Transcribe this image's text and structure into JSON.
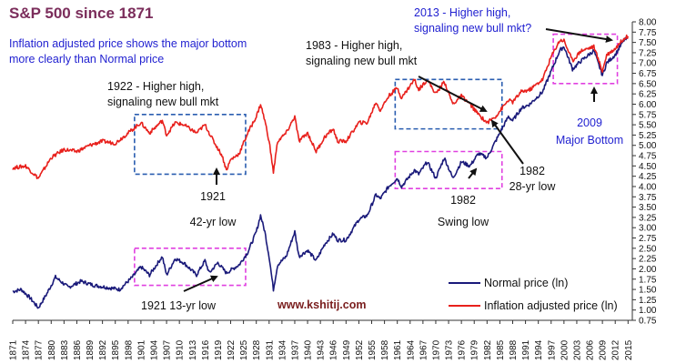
{
  "chart_data": {
    "type": "line",
    "title": "S&P 500 since 1871",
    "subtitle_lines": [
      "Inflation adjusted price shows the major bottom",
      "more clearly than Normal price"
    ],
    "xlabel": "",
    "ylabel": "",
    "xlim": [
      1871,
      2016
    ],
    "ylim": [
      0.75,
      8.0
    ],
    "grid": false,
    "legend_position": "bottom-right",
    "x_tick_labels": [
      "1871",
      "1874",
      "1877",
      "1880",
      "1883",
      "1886",
      "1889",
      "1892",
      "1895",
      "1898",
      "1901",
      "1904",
      "1907",
      "1910",
      "1913",
      "1916",
      "1919",
      "1922",
      "1925",
      "1928",
      "1931",
      "1934",
      "1937",
      "1940",
      "1943",
      "1946",
      "1949",
      "1952",
      "1955",
      "1958",
      "1961",
      "1964",
      "1967",
      "1970",
      "1973",
      "1976",
      "1979",
      "1982",
      "1985",
      "1988",
      "1991",
      "1994",
      "1997",
      "2000",
      "2003",
      "2006",
      "2009",
      "2012",
      "2015"
    ],
    "y_tick_labels": [
      "8.00",
      "7.75",
      "7.50",
      "7.25",
      "7.00",
      "6.75",
      "6.50",
      "6.25",
      "6.00",
      "5.75",
      "5.50",
      "5.25",
      "5.00",
      "4.75",
      "4.50",
      "4.25",
      "4.00",
      "3.75",
      "3.50",
      "3.25",
      "3.00",
      "2.75",
      "2.50",
      "2.25",
      "2.00",
      "1.75",
      "1.50",
      "1.25",
      "1.00",
      "0.75"
    ],
    "series": [
      {
        "name": "Normal price (ln)",
        "color": "#1a1a7a",
        "points": [
          [
            1871,
            1.45
          ],
          [
            1873,
            1.5
          ],
          [
            1875,
            1.3
          ],
          [
            1877,
            1.05
          ],
          [
            1879,
            1.4
          ],
          [
            1881,
            1.8
          ],
          [
            1884,
            1.55
          ],
          [
            1887,
            1.7
          ],
          [
            1890,
            1.6
          ],
          [
            1893,
            1.55
          ],
          [
            1896,
            1.5
          ],
          [
            1899,
            1.8
          ],
          [
            1901,
            2.05
          ],
          [
            1903,
            1.85
          ],
          [
            1906,
            2.3
          ],
          [
            1907,
            1.85
          ],
          [
            1909,
            2.25
          ],
          [
            1911,
            2.15
          ],
          [
            1914,
            1.85
          ],
          [
            1916,
            2.2
          ],
          [
            1917,
            1.9
          ],
          [
            1919,
            2.15
          ],
          [
            1921,
            1.9
          ],
          [
            1924,
            2.1
          ],
          [
            1926,
            2.4
          ],
          [
            1928,
            2.9
          ],
          [
            1929,
            3.3
          ],
          [
            1930,
            2.9
          ],
          [
            1931,
            2.3
          ],
          [
            1932,
            1.5
          ],
          [
            1933,
            2.1
          ],
          [
            1935,
            2.3
          ],
          [
            1937,
            2.9
          ],
          [
            1938,
            2.3
          ],
          [
            1940,
            2.45
          ],
          [
            1942,
            2.2
          ],
          [
            1944,
            2.6
          ],
          [
            1946,
            2.85
          ],
          [
            1947,
            2.7
          ],
          [
            1949,
            2.7
          ],
          [
            1952,
            3.2
          ],
          [
            1954,
            3.3
          ],
          [
            1956,
            3.8
          ],
          [
            1957,
            3.7
          ],
          [
            1959,
            4.0
          ],
          [
            1961,
            4.2
          ],
          [
            1962,
            4.0
          ],
          [
            1965,
            4.4
          ],
          [
            1966,
            4.3
          ],
          [
            1968,
            4.6
          ],
          [
            1970,
            4.2
          ],
          [
            1972,
            4.7
          ],
          [
            1974,
            4.2
          ],
          [
            1976,
            4.6
          ],
          [
            1978,
            4.5
          ],
          [
            1980,
            4.8
          ],
          [
            1982,
            4.7
          ],
          [
            1984,
            5.1
          ],
          [
            1987,
            5.7
          ],
          [
            1988,
            5.6
          ],
          [
            1990,
            5.9
          ],
          [
            1992,
            6.0
          ],
          [
            1995,
            6.3
          ],
          [
            1997,
            6.8
          ],
          [
            1999,
            7.3
          ],
          [
            2000,
            7.4
          ],
          [
            2002,
            6.85
          ],
          [
            2004,
            7.05
          ],
          [
            2007,
            7.3
          ],
          [
            2009,
            6.7
          ],
          [
            2010,
            7.0
          ],
          [
            2012,
            7.2
          ],
          [
            2014,
            7.55
          ],
          [
            2015,
            7.6
          ]
        ]
      },
      {
        "name": "Inflation adjusted price (ln)",
        "color": "#e8201c",
        "points": [
          [
            1871,
            4.45
          ],
          [
            1874,
            4.5
          ],
          [
            1877,
            4.2
          ],
          [
            1880,
            4.7
          ],
          [
            1883,
            4.9
          ],
          [
            1886,
            4.85
          ],
          [
            1889,
            5.0
          ],
          [
            1892,
            5.1
          ],
          [
            1895,
            5.05
          ],
          [
            1898,
            5.3
          ],
          [
            1901,
            5.55
          ],
          [
            1903,
            5.3
          ],
          [
            1906,
            5.6
          ],
          [
            1907,
            5.25
          ],
          [
            1909,
            5.55
          ],
          [
            1911,
            5.5
          ],
          [
            1914,
            5.3
          ],
          [
            1916,
            5.5
          ],
          [
            1918,
            5.1
          ],
          [
            1920,
            4.75
          ],
          [
            1921,
            4.4
          ],
          [
            1922,
            4.65
          ],
          [
            1924,
            4.8
          ],
          [
            1926,
            5.3
          ],
          [
            1928,
            5.7
          ],
          [
            1929,
            6.0
          ],
          [
            1930,
            5.6
          ],
          [
            1931,
            5.1
          ],
          [
            1932,
            4.35
          ],
          [
            1933,
            5.1
          ],
          [
            1935,
            5.3
          ],
          [
            1937,
            5.7
          ],
          [
            1938,
            5.1
          ],
          [
            1940,
            5.3
          ],
          [
            1942,
            4.85
          ],
          [
            1944,
            5.2
          ],
          [
            1946,
            5.4
          ],
          [
            1947,
            5.1
          ],
          [
            1949,
            5.1
          ],
          [
            1952,
            5.55
          ],
          [
            1954,
            5.55
          ],
          [
            1956,
            6.05
          ],
          [
            1957,
            5.85
          ],
          [
            1959,
            6.2
          ],
          [
            1961,
            6.4
          ],
          [
            1962,
            6.15
          ],
          [
            1965,
            6.6
          ],
          [
            1966,
            6.35
          ],
          [
            1968,
            6.6
          ],
          [
            1970,
            6.25
          ],
          [
            1972,
            6.55
          ],
          [
            1974,
            6.0
          ],
          [
            1976,
            6.2
          ],
          [
            1978,
            6.0
          ],
          [
            1980,
            5.75
          ],
          [
            1982,
            5.55
          ],
          [
            1984,
            5.7
          ],
          [
            1987,
            6.1
          ],
          [
            1988,
            6.05
          ],
          [
            1990,
            6.3
          ],
          [
            1992,
            6.35
          ],
          [
            1995,
            6.6
          ],
          [
            1997,
            7.15
          ],
          [
            1999,
            7.55
          ],
          [
            2000,
            7.55
          ],
          [
            2002,
            7.05
          ],
          [
            2004,
            7.3
          ],
          [
            2007,
            7.4
          ],
          [
            2009,
            6.8
          ],
          [
            2010,
            7.2
          ],
          [
            2012,
            7.35
          ],
          [
            2014,
            7.6
          ],
          [
            2015,
            7.65
          ]
        ]
      }
    ],
    "annotations": {
      "a1922": [
        "1922 - Higher high,",
        "signaling new bull mkt"
      ],
      "a1921": [
        "1921",
        "42-yr low"
      ],
      "a1921b": "1921 13-yr low",
      "a1983": [
        "1983 - Higher high,",
        "signaling new bull mkt"
      ],
      "a1982a": [
        "1982",
        "28-yr low"
      ],
      "a1982b": [
        "1982",
        "Swing low"
      ],
      "a2013": [
        "2013 - Higher high,",
        "signaling new bull mkt?"
      ],
      "a2009": [
        "2009",
        "Major Bottom"
      ],
      "website": "www.kshitij.com"
    },
    "boxes": [
      {
        "x0": 1899.5,
        "x1": 1925.5,
        "y0": 4.3,
        "y1": 5.75,
        "color": "#2a5db0"
      },
      {
        "x0": 1899.5,
        "x1": 1925.5,
        "y0": 1.6,
        "y1": 2.5,
        "color": "#e040e0"
      },
      {
        "x0": 1960.5,
        "x1": 1985.5,
        "y0": 5.4,
        "y1": 6.6,
        "color": "#2a5db0"
      },
      {
        "x0": 1960.5,
        "x1": 1985.5,
        "y0": 3.95,
        "y1": 4.85,
        "color": "#e040e0"
      },
      {
        "x0": 1997.5,
        "x1": 2012.5,
        "y0": 6.5,
        "y1": 7.7,
        "color": "#e040e0"
      }
    ]
  }
}
